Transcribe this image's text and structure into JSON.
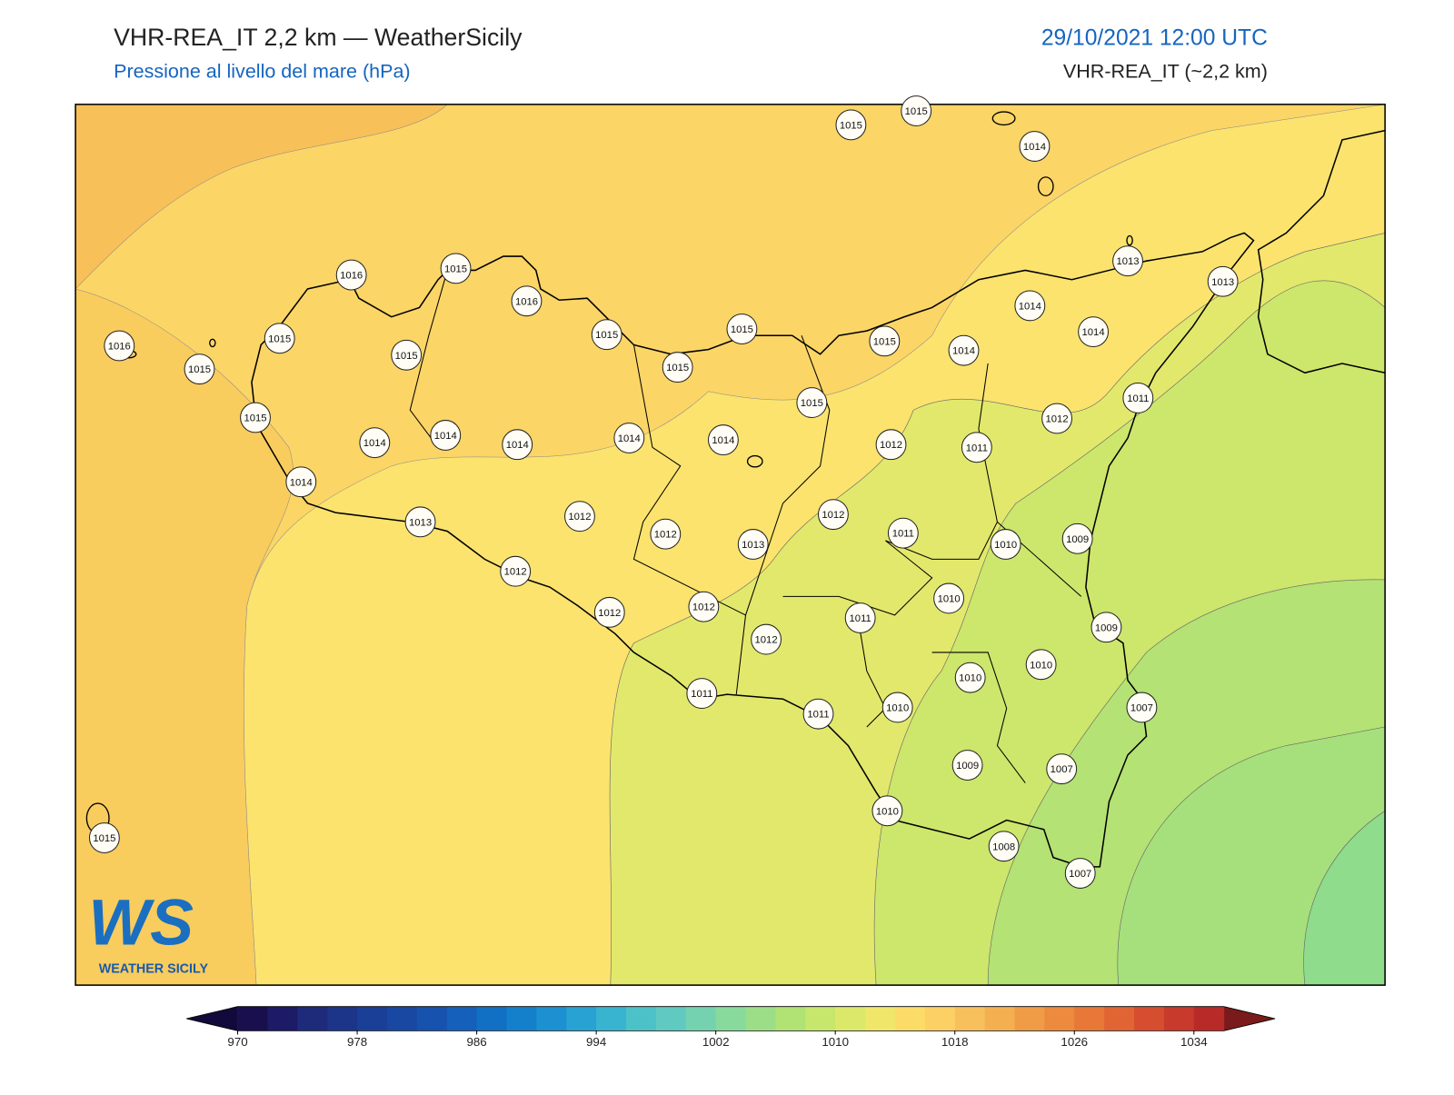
{
  "header": {
    "title": "VHR-REA_IT 2,2 km — WeatherSicily",
    "subtitle": "Pressione al livello del mare (hPa)",
    "date": "29/10/2021 12:00 UTC",
    "model": "VHR-REA_IT (~2,2 km)"
  },
  "logo": {
    "mark": "WS",
    "text": "WEATHER SICILY"
  },
  "stations": [
    1015,
    1015,
    1014,
    1013,
    1013,
    1016,
    1015,
    1016,
    1016,
    1015,
    1015,
    1015,
    1015,
    1015,
    1015,
    1015,
    1014,
    1014,
    1014,
    1015,
    1015,
    1011,
    1014,
    1014,
    1014,
    1014,
    1014,
    1012,
    1012,
    1011,
    1014,
    1013,
    1012,
    1012,
    1013,
    1012,
    1011,
    1010,
    1009,
    1012,
    1012,
    1012,
    1010,
    1011,
    1012,
    1009,
    1010,
    1010,
    1011,
    1011,
    1010,
    1007,
    1009,
    1007,
    1010,
    1008,
    1007,
    1015
  ],
  "colorbar": {
    "lim": [
      970,
      1036
    ],
    "ticks": [
      970,
      978,
      986,
      994,
      1002,
      1010,
      1018,
      1026,
      1034
    ],
    "colors": [
      "#1a0f4e",
      "#1d1a66",
      "#1e2a7a",
      "#1c3588",
      "#1a3f96",
      "#1848a2",
      "#1652ae",
      "#1460ba",
      "#1270c4",
      "#1480cc",
      "#1c90d0",
      "#28a2d2",
      "#38b4d0",
      "#4cc2c8",
      "#60cac0",
      "#74d2b0",
      "#88da9c",
      "#9cde88",
      "#b0e274",
      "#c6e66c",
      "#dce86a",
      "#f0e66a",
      "#fcdc68",
      "#fcd064",
      "#f8c05c",
      "#f4b050",
      "#f09c46",
      "#ec8a3e",
      "#e87838",
      "#e06434",
      "#d64e30",
      "#c83a2c",
      "#b82a28"
    ],
    "under": "#120a3a",
    "over": "#7a1a1a"
  }
}
